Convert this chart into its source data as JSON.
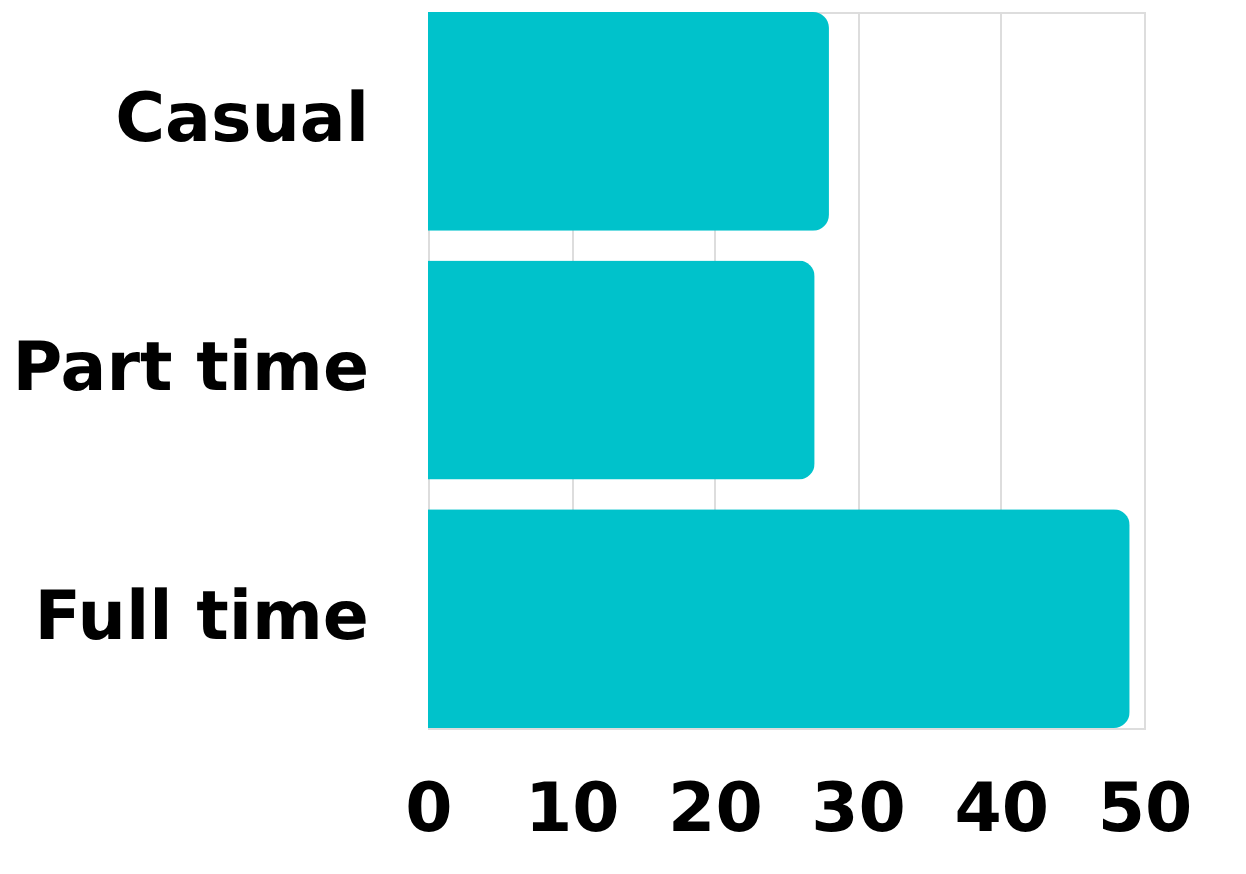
{
  "chart_data": {
    "type": "bar",
    "orientation": "horizontal",
    "categories": [
      "Casual",
      "Part time",
      "Full time"
    ],
    "values": [
      28,
      27,
      49
    ],
    "color": "#00c2cb",
    "xlim": [
      0,
      50
    ],
    "xticks": [
      0,
      10,
      20,
      30,
      40,
      50
    ],
    "grid": "x"
  }
}
